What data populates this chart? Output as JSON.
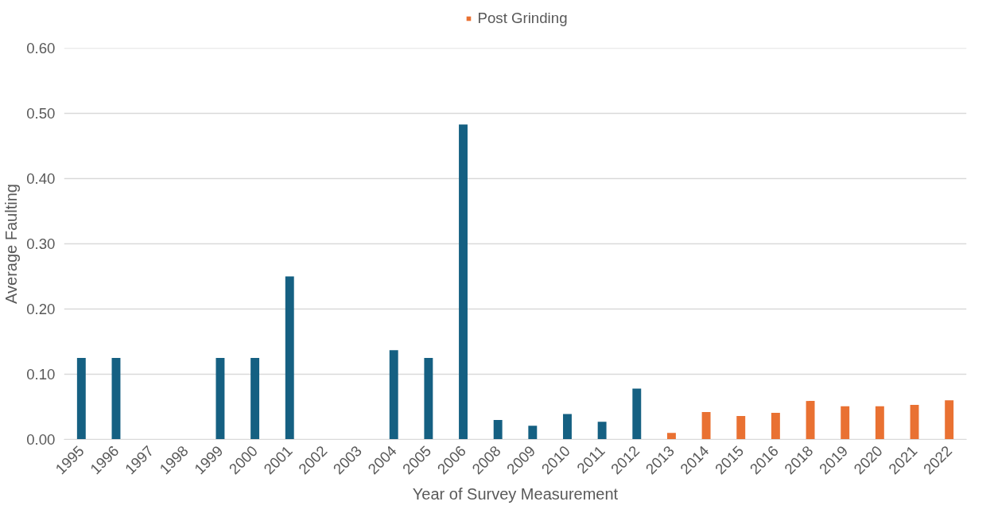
{
  "chart_data": {
    "type": "bar",
    "xlabel": "Year of Survey Measurement",
    "ylabel": "Average Faulting",
    "categories": [
      "1995",
      "1996",
      "1997",
      "1998",
      "1999",
      "2000",
      "2001",
      "2002",
      "2003",
      "2004",
      "2005",
      "2006",
      "2008",
      "2009",
      "2010",
      "2011",
      "2012",
      "2013",
      "2014",
      "2015",
      "2016",
      "2018",
      "2019",
      "2020",
      "2021",
      "2022"
    ],
    "series": [
      {
        "color": "#156082",
        "values": [
          0.125,
          0.125,
          null,
          null,
          0.125,
          0.125,
          0.25,
          null,
          null,
          0.137,
          0.125,
          0.483,
          0.03,
          0.021,
          0.039,
          0.027,
          0.078,
          null,
          null,
          null,
          null,
          null,
          null,
          null,
          null,
          null
        ]
      },
      {
        "name": "Post Grinding",
        "color": "#e97132",
        "values": [
          null,
          null,
          null,
          null,
          null,
          null,
          null,
          null,
          null,
          null,
          null,
          null,
          null,
          null,
          null,
          null,
          null,
          0.01,
          0.042,
          0.036,
          0.041,
          0.059,
          0.051,
          0.051,
          0.053,
          0.06
        ]
      }
    ],
    "ylim": [
      0,
      0.6
    ],
    "yticks": [
      {
        "value": 0,
        "label": "0.00"
      },
      {
        "value": 0.1,
        "label": "0.10"
      },
      {
        "value": 0.2,
        "label": "0.20"
      },
      {
        "value": 0.3,
        "label": "0.30"
      },
      {
        "value": 0.4,
        "label": "0.40"
      },
      {
        "value": 0.5,
        "label": "0.50"
      },
      {
        "value": 0.6,
        "label": "0.60"
      }
    ],
    "grid": "y",
    "legend": "top"
  }
}
